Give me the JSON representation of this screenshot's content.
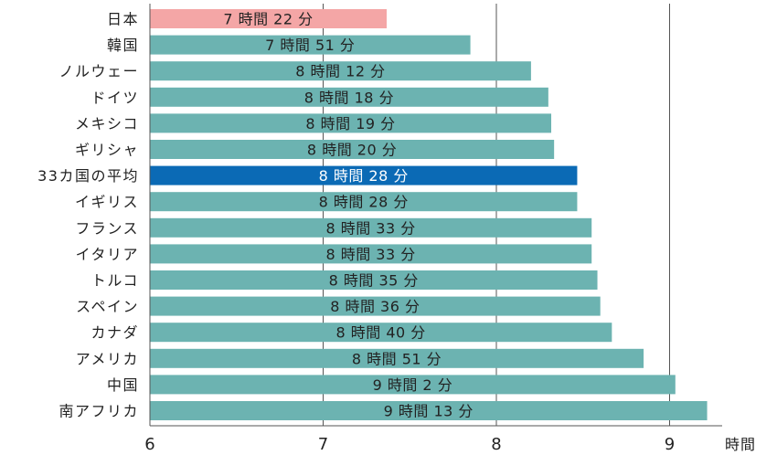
{
  "chart_data": {
    "type": "bar",
    "orientation": "horizontal",
    "xlabel": "時間",
    "xlim": [
      6,
      9.3
    ],
    "xticks": [
      6,
      7,
      8,
      9
    ],
    "grid": true,
    "categories": [
      "日本",
      "韓国",
      "ノルウェー",
      "ドイツ",
      "メキシコ",
      "ギリシャ",
      "33カ国の平均",
      "イギリス",
      "フランス",
      "イタリア",
      "トルコ",
      "スペイン",
      "カナダ",
      "アメリカ",
      "中国",
      "南アフリカ"
    ],
    "values": [
      7.3667,
      7.85,
      8.2,
      8.3,
      8.3167,
      8.3333,
      8.4667,
      8.4667,
      8.55,
      8.55,
      8.5833,
      8.6,
      8.6667,
      8.85,
      9.0333,
      9.2167
    ],
    "value_labels": [
      "7 時間 22 分",
      "7 時間 51 分",
      "8 時間 12 分",
      "8 時間 18 分",
      "8 時間 19 分",
      "8 時間 20 分",
      "8 時間 28 分",
      "8 時間 28 分",
      "8 時間 33 分",
      "8 時間 33 分",
      "8 時間 35 分",
      "8 時間 36 分",
      "8 時間 40 分",
      "8 時間 51 分",
      "9 時間 2 分",
      "9 時間 13 分"
    ],
    "highlight": {
      "日本": "#f4a6a6",
      "33カ国の平均": "#0b6ab5"
    },
    "colors": {
      "default": "#6cb3b1",
      "japan": "#f4a6a6",
      "average": "#0b6ab5",
      "grid": "#555555",
      "text": "#222222",
      "label_on_dark": "#ffffff"
    }
  }
}
